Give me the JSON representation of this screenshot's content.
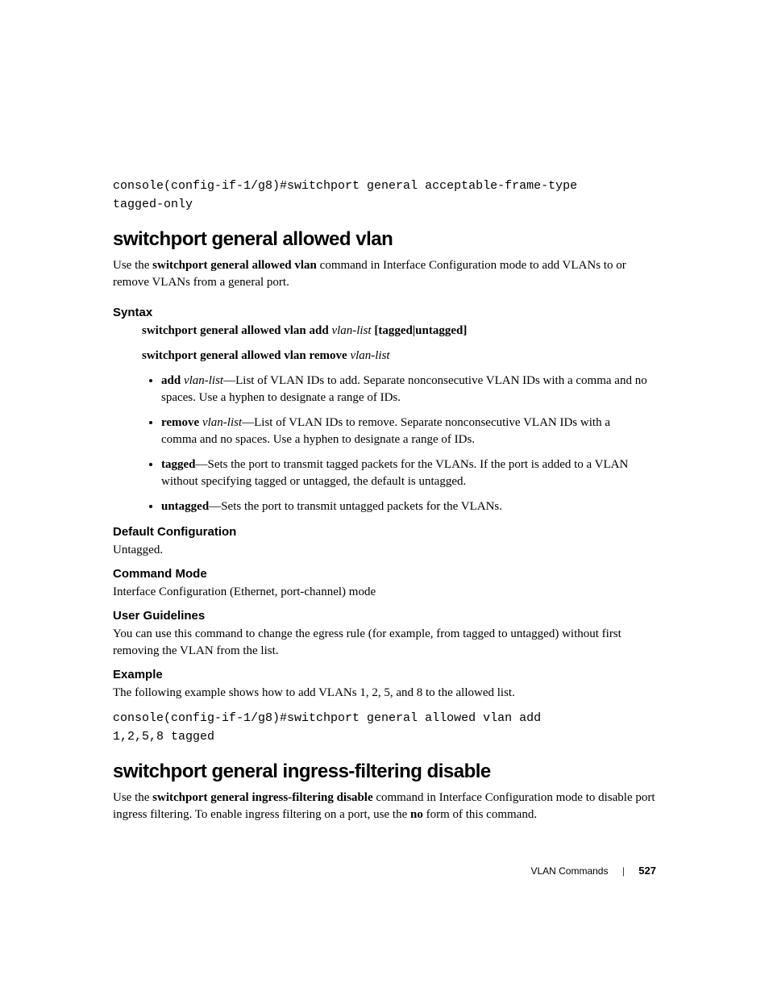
{
  "code1_line1": "console(config-if-1/g8)#switchport general acceptable-frame-type",
  "code1_line2": "tagged-only",
  "sec1": {
    "title": "switchport general allowed vlan",
    "intro_pre": "Use the ",
    "intro_cmd": "switchport general allowed vlan",
    "intro_post": " command in Interface Configuration mode to add VLANs to or remove VLANs from a general port.",
    "syntax_h": "Syntax",
    "syntax1": {
      "cmd": "switchport general allowed vlan add",
      "arg": " vlan-list ",
      "tail": "[tagged|untagged]"
    },
    "syntax2": {
      "cmd": "switchport general allowed vlan remove",
      "arg": " vlan-list"
    },
    "bullets": {
      "b1_kw": "add",
      "b1_it": " vlan-list",
      "b1_txt": "—List of VLAN IDs to add. Separate nonconsecutive VLAN IDs with a comma and no spaces. Use a hyphen to designate a range of IDs.",
      "b2_kw": "remove",
      "b2_it": " vlan-list",
      "b2_txt": "—List of VLAN IDs to remove. Separate nonconsecutive VLAN IDs with a comma and no spaces. Use a hyphen to designate a range of IDs.",
      "b3_kw": "tagged",
      "b3_txt": "—Sets the port to transmit tagged packets for the VLANs. If the port is added to a VLAN without specifying tagged or untagged, the default is untagged.",
      "b4_kw": "untagged",
      "b4_txt": "—Sets the port to transmit untagged packets for the VLANs."
    },
    "default_h": "Default Configuration",
    "default_txt": "Untagged.",
    "mode_h": "Command Mode",
    "mode_txt": "Interface Configuration (Ethernet, port-channel) mode",
    "guide_h": "User Guidelines",
    "guide_txt": "You can use this command to change the egress rule (for example, from tagged to untagged) without first removing the VLAN from the list.",
    "example_h": "Example",
    "example_txt": "The following example shows how to add VLANs 1, 2, 5, and 8 to the allowed list.",
    "example_code_l1": "console(config-if-1/g8)#switchport general allowed vlan add",
    "example_code_l2": "1,2,5,8 tagged"
  },
  "sec2": {
    "title": "switchport general ingress-filtering disable",
    "intro_pre": "Use the ",
    "intro_cmd": "switchport general ingress-filtering disable",
    "intro_mid": " command in Interface Configuration mode to disable port ingress filtering. To enable ingress filtering on a port, use the ",
    "intro_no": "no",
    "intro_post": " form of this command."
  },
  "footer": {
    "section": "VLAN Commands",
    "page": "527"
  }
}
